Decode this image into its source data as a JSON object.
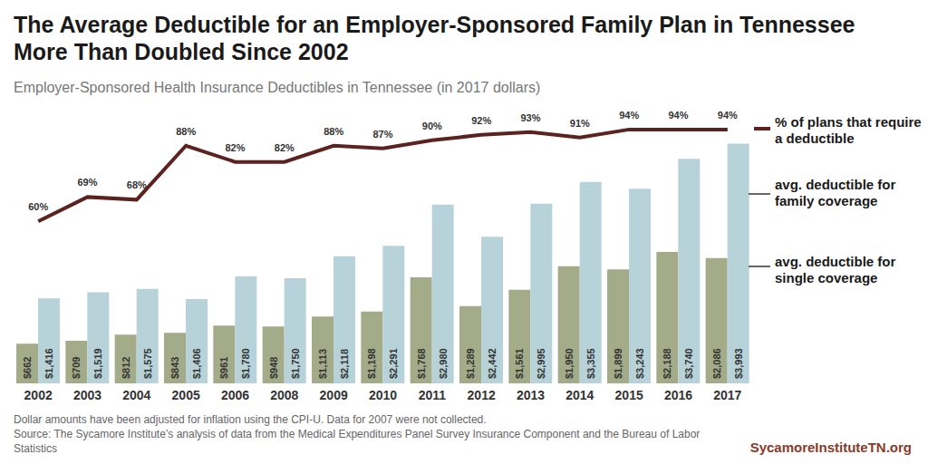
{
  "chart_data": {
    "type": "bar",
    "title": "The Average Deductible for an Employer-Sponsored Family Plan in Tennessee More Than Doubled Since 2002",
    "subtitle": "Employer-Sponsored Health Insurance Deductibles in Tennessee (in 2017 dollars)",
    "categories": [
      "2002",
      "2003",
      "2004",
      "2005",
      "2006",
      "2008",
      "2009",
      "2010",
      "2011",
      "2012",
      "2013",
      "2014",
      "2015",
      "2016",
      "2017"
    ],
    "series": [
      {
        "name": "avg. deductible for single coverage",
        "color": "#a4ab89",
        "values": [
          662,
          709,
          812,
          843,
          961,
          948,
          1113,
          1198,
          1768,
          1289,
          1561,
          1950,
          1899,
          2188,
          2086
        ],
        "value_labels": [
          "$662",
          "$709",
          "$812",
          "$843",
          "$961",
          "$948",
          "$1,113",
          "$1,198",
          "$1,768",
          "$1,289",
          "$1,561",
          "$1,950",
          "$1,899",
          "$2,188",
          "$2,086"
        ]
      },
      {
        "name": "avg. deductible for family coverage",
        "color": "#b7d3d9",
        "values": [
          1416,
          1519,
          1575,
          1406,
          1780,
          1750,
          2118,
          2291,
          2980,
          2442,
          2995,
          3355,
          3243,
          3740,
          3993
        ],
        "value_labels": [
          "$1,416",
          "$1,519",
          "$1,575",
          "$1,406",
          "$1,780",
          "$1,750",
          "$2,118",
          "$2,291",
          "$2,980",
          "$2,442",
          "$2,995",
          "$3,355",
          "$3,243",
          "$3,740",
          "$3,993"
        ]
      },
      {
        "name": "% of plans that require a deductible",
        "type": "line",
        "axis": "y2",
        "color": "#5c2220",
        "values": [
          60,
          69,
          68,
          88,
          82,
          82,
          88,
          87,
          90,
          92,
          93,
          91,
          94,
          94,
          94
        ],
        "value_labels": [
          "60%",
          "69%",
          "68%",
          "88%",
          "82%",
          "82%",
          "88%",
          "87%",
          "90%",
          "92%",
          "93%",
          "91%",
          "94%",
          "94%",
          "94%"
        ]
      }
    ],
    "ylim": [
      0,
      4500
    ],
    "y2lim": [
      0,
      100
    ],
    "tick_labels": "x",
    "data_labels": true,
    "legend": "right",
    "annotations": [
      "Dollar amounts have been adjusted for inflation using the CPI-U. Data for 2007 were not collected.",
      "Source: The Sycamore Institute’s analysis of data from the Medical Expenditures Panel Survey Insurance Component and the Bureau of Labor Statistics",
      "SycamoreInstituteTN.org"
    ]
  }
}
